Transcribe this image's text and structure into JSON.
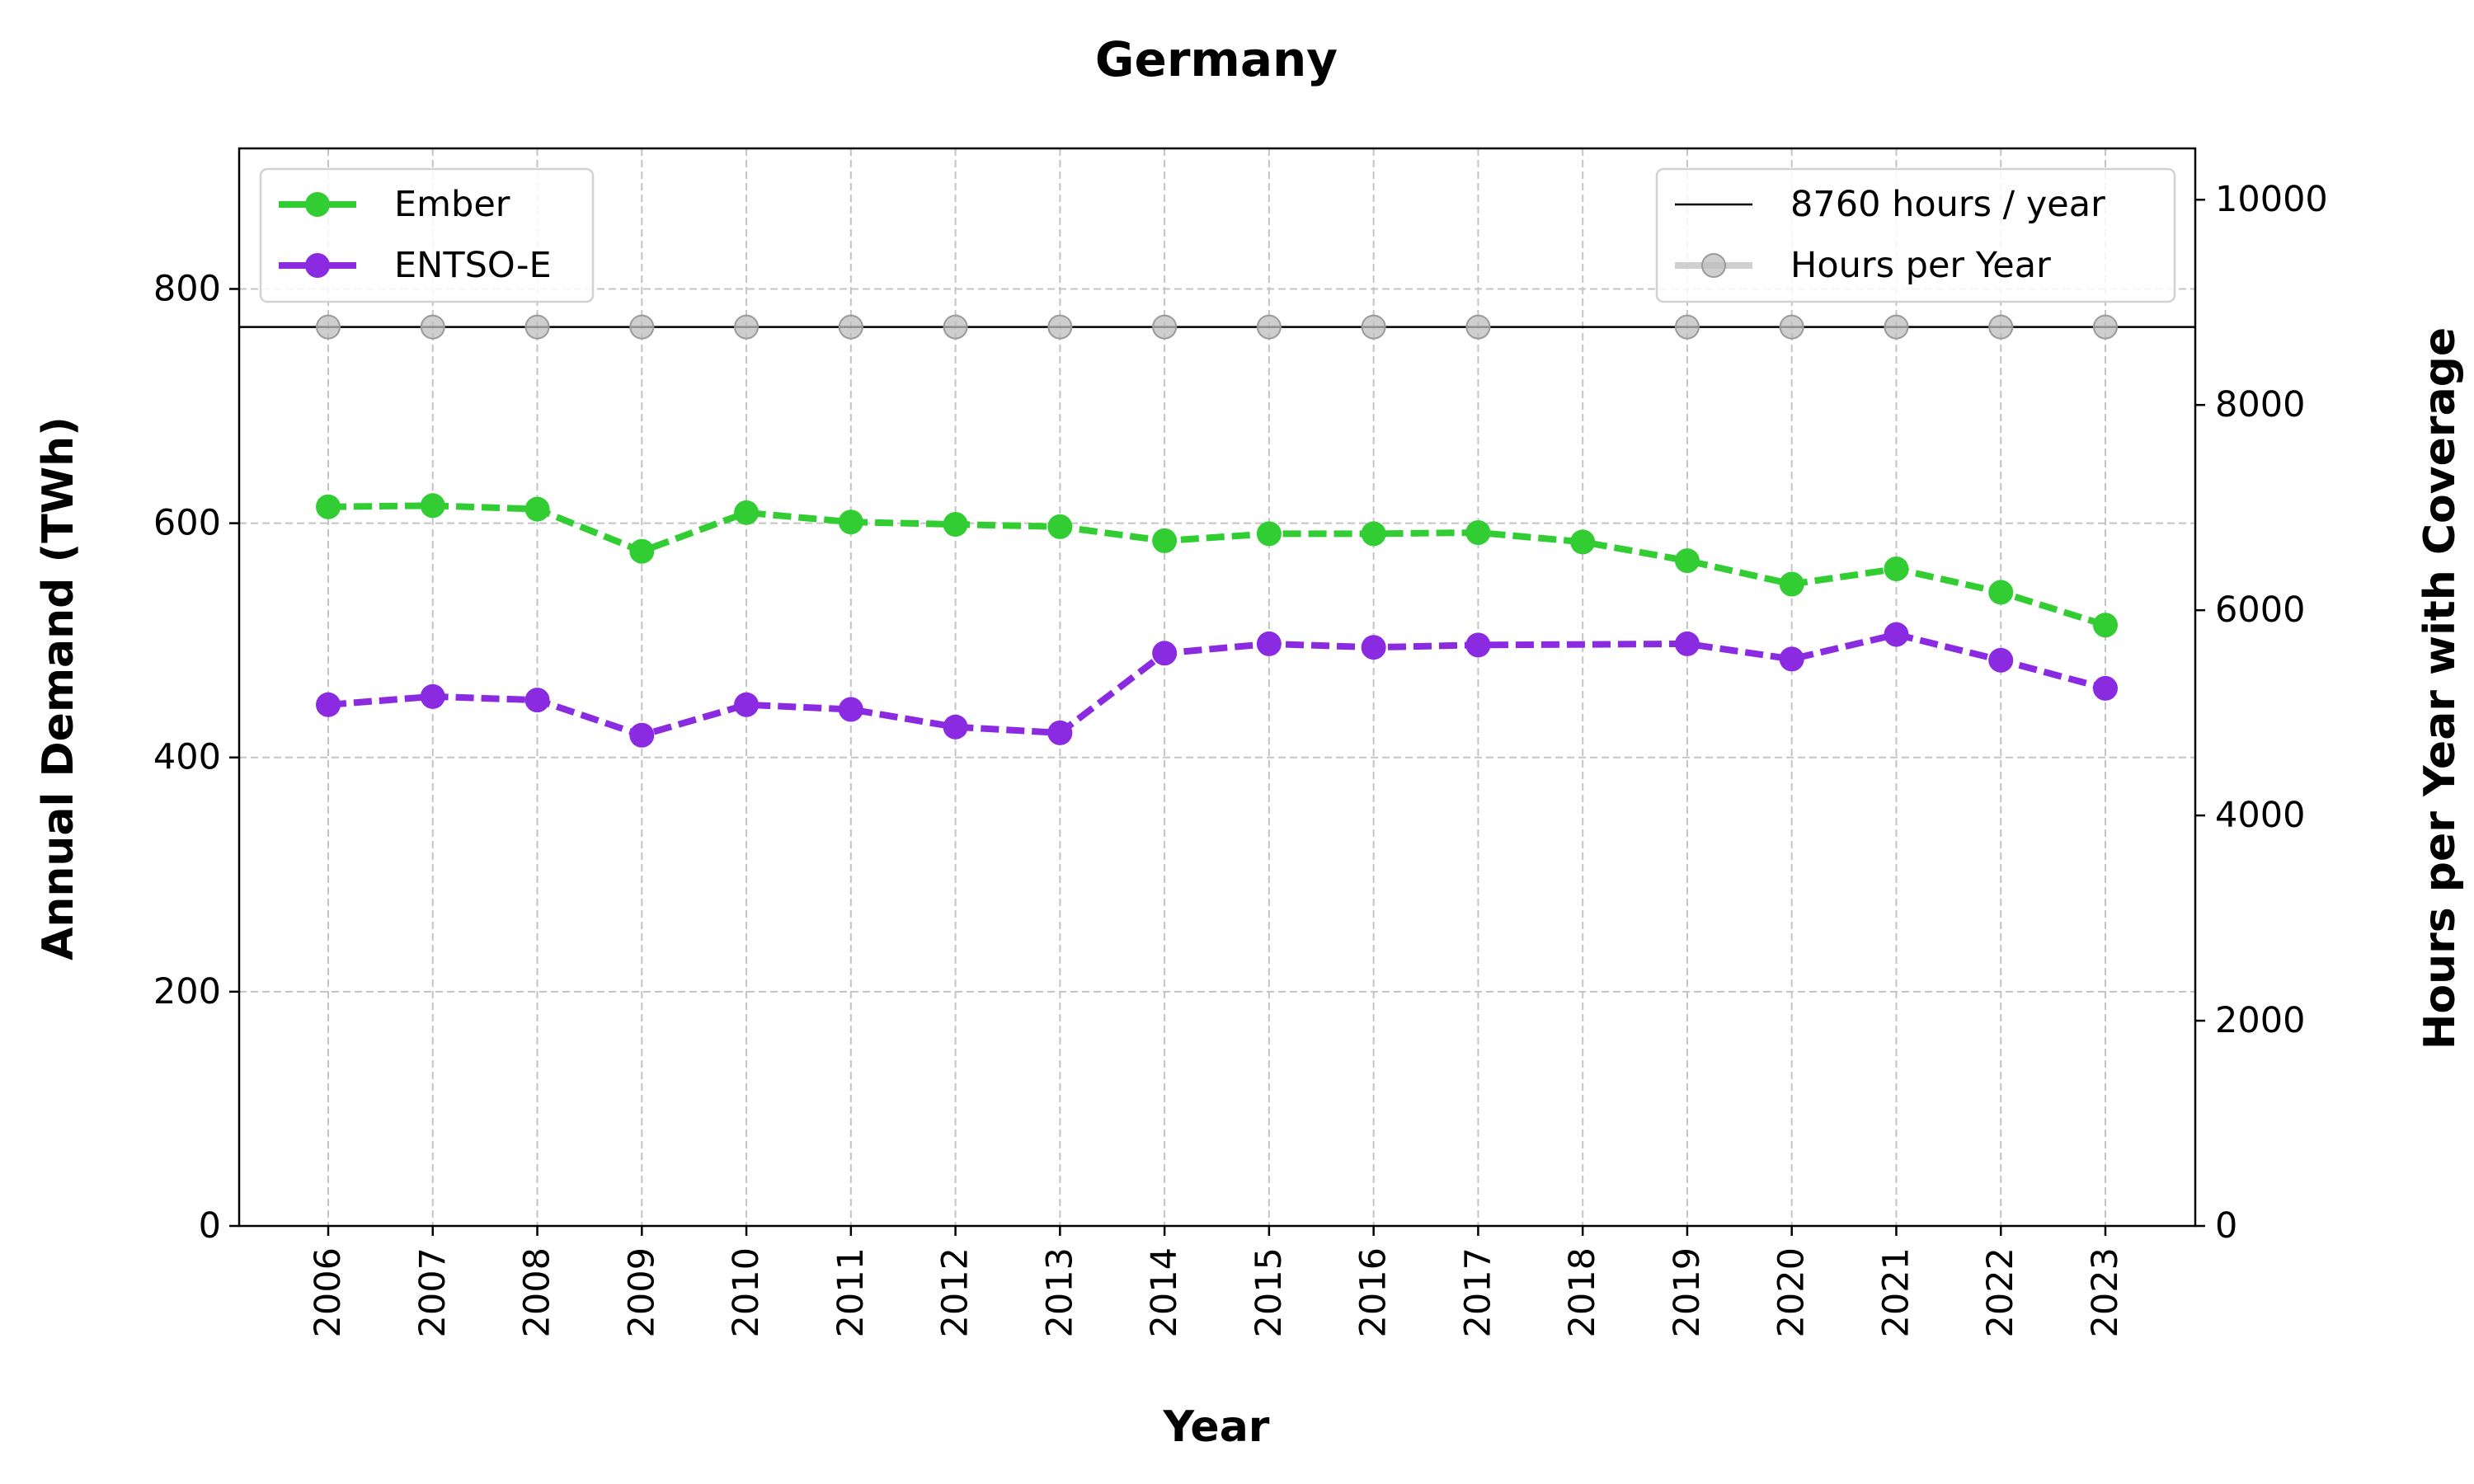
{
  "chart_data": {
    "type": "line",
    "title": "Germany",
    "xlabel": "Year",
    "ylabel": "Annual Demand (TWh)",
    "y2label": "Hours per Year with Coverage",
    "categories": [
      "2006",
      "2007",
      "2008",
      "2009",
      "2010",
      "2011",
      "2012",
      "2013",
      "2014",
      "2015",
      "2016",
      "2017",
      "2018",
      "2019",
      "2020",
      "2021",
      "2022",
      "2023"
    ],
    "ylim": [
      0,
      920
    ],
    "y2lim": [
      0,
      10500
    ],
    "yticks": [
      "0",
      "200",
      "400",
      "600",
      "800"
    ],
    "y2ticks": [
      "0",
      "2000",
      "4000",
      "6000",
      "8000",
      "10000"
    ],
    "grid": true,
    "series": [
      {
        "name": "Ember",
        "axis": "left",
        "color": "#32cd32",
        "values": [
          614,
          615,
          612,
          576,
          609,
          601,
          599,
          597,
          585,
          591,
          591,
          592,
          584,
          568,
          548,
          561,
          541,
          513
        ]
      },
      {
        "name": "ENTSO-E",
        "axis": "left",
        "color": "#8a2be2",
        "values": [
          445,
          452,
          449,
          419,
          445,
          441,
          426,
          421,
          489,
          497,
          494,
          496,
          null,
          497,
          484,
          505,
          483,
          459
        ]
      },
      {
        "name": "Hours per Year",
        "axis": "right",
        "color": "#aaaaaa",
        "values": [
          8760,
          8760,
          8760,
          8760,
          8760,
          8760,
          8760,
          8760,
          8760,
          8760,
          8760,
          8760,
          null,
          8760,
          8760,
          8760,
          8760,
          8760
        ]
      }
    ],
    "reference_line": {
      "name": "8760 hours / year",
      "axis": "right",
      "value": 8760,
      "color": "#000000"
    },
    "legend_left": [
      "Ember",
      "ENTSO-E"
    ],
    "legend_right": [
      "8760 hours / year",
      "Hours per Year"
    ],
    "legend_left_position": "upper-left",
    "legend_right_position": "upper-right"
  }
}
